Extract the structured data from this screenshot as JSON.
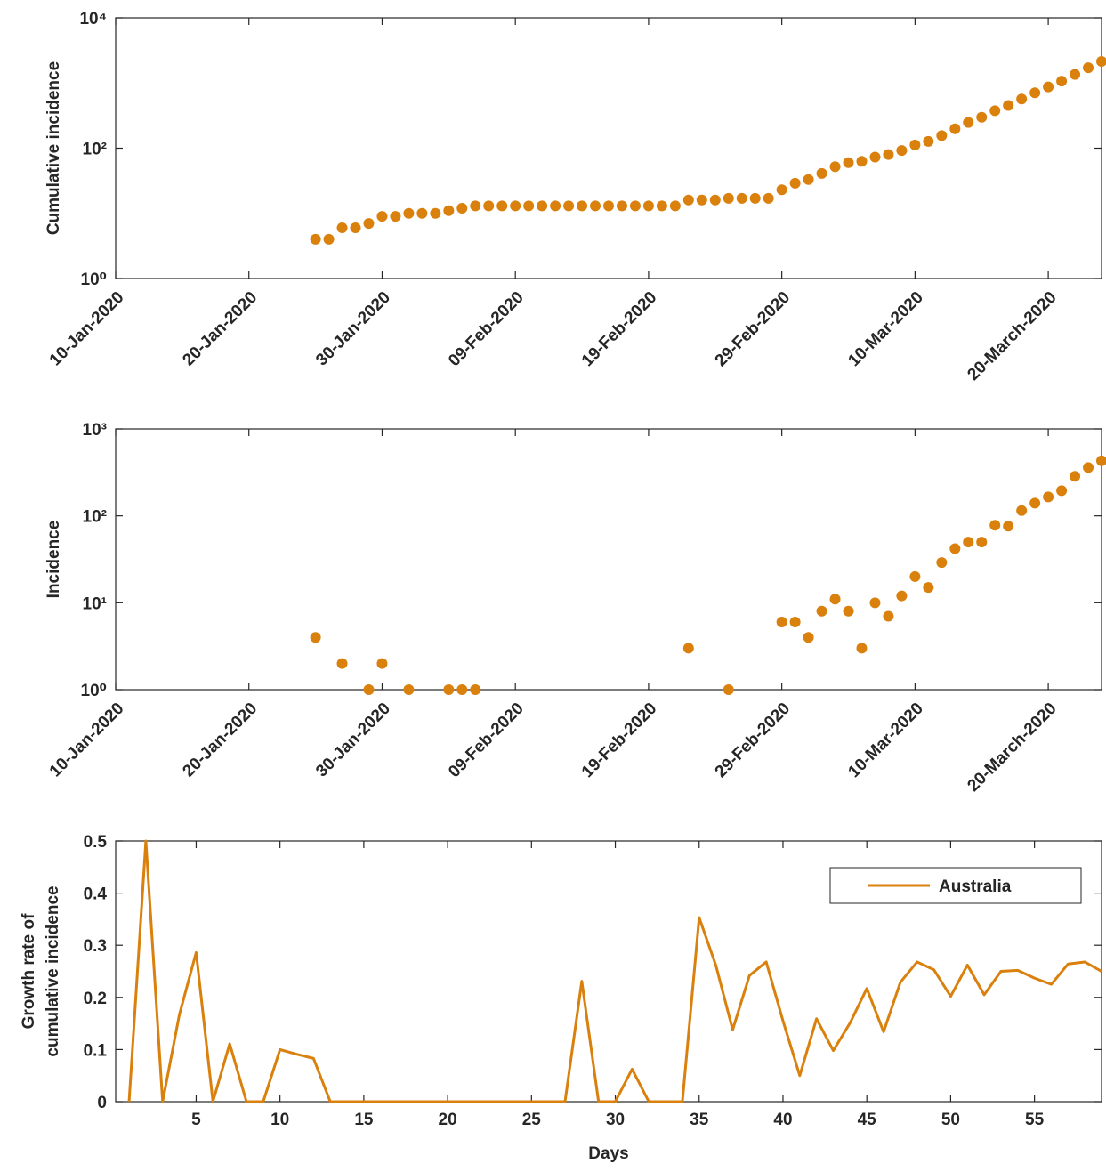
{
  "chart_data": [
    {
      "type": "scatter",
      "ylabel": "Cumulative incidence",
      "color": "#d9800d",
      "yscale": "log",
      "x": [
        "2020-01-25",
        "2020-01-26",
        "2020-01-27",
        "2020-01-28",
        "2020-01-29",
        "2020-01-30",
        "2020-01-31",
        "2020-02-01",
        "2020-02-02",
        "2020-02-03",
        "2020-02-04",
        "2020-02-05",
        "2020-02-06",
        "2020-02-07",
        "2020-02-08",
        "2020-02-09",
        "2020-02-10",
        "2020-02-11",
        "2020-02-12",
        "2020-02-13",
        "2020-02-14",
        "2020-02-15",
        "2020-02-16",
        "2020-02-17",
        "2020-02-18",
        "2020-02-19",
        "2020-02-20",
        "2020-02-21",
        "2020-02-22",
        "2020-02-23",
        "2020-02-24",
        "2020-02-25",
        "2020-02-26",
        "2020-02-27",
        "2020-02-28",
        "2020-02-29",
        "2020-03-01",
        "2020-03-02",
        "2020-03-03",
        "2020-03-04",
        "2020-03-05",
        "2020-03-06",
        "2020-03-07",
        "2020-03-08",
        "2020-03-09",
        "2020-03-10",
        "2020-03-11",
        "2020-03-12",
        "2020-03-13",
        "2020-03-14",
        "2020-03-15",
        "2020-03-16",
        "2020-03-17",
        "2020-03-18",
        "2020-03-19",
        "2020-03-20",
        "2020-03-21",
        "2020-03-22",
        "2020-03-23",
        "2020-03-24"
      ],
      "values": [
        4,
        4,
        6,
        6,
        7,
        9,
        9,
        10,
        10,
        10,
        11,
        12,
        13,
        13,
        13,
        13,
        13,
        13,
        13,
        13,
        13,
        13,
        13,
        13,
        13,
        13,
        13,
        13,
        16,
        16,
        16,
        17,
        17,
        17,
        17,
        23,
        29,
        33,
        41,
        52,
        60,
        63,
        73,
        80,
        92,
        112,
        127,
        156,
        198,
        248,
        298,
        376,
        452,
        567,
        707,
        872,
        1067,
        1352,
        1712,
        2142
      ],
      "xlim": [
        "2020-01-10",
        "2020-03-24"
      ],
      "xticks": [
        {
          "value": "2020-01-10",
          "label": "10-Jan-2020"
        },
        {
          "value": "2020-01-20",
          "label": "20-Jan-2020"
        },
        {
          "value": "2020-01-30",
          "label": "30-Jan-2020"
        },
        {
          "value": "2020-02-09",
          "label": "09-Feb-2020"
        },
        {
          "value": "2020-02-19",
          "label": "19-Feb-2020"
        },
        {
          "value": "2020-02-29",
          "label": "29-Feb-2020"
        },
        {
          "value": "2020-03-10",
          "label": "10-Mar-2020"
        },
        {
          "value": "2020-03-20",
          "label": "20-March-2020"
        }
      ],
      "ylim": [
        1,
        10000
      ],
      "yticks": [
        {
          "value": 1,
          "label": "10⁰"
        },
        {
          "value": 100,
          "label": "10²"
        },
        {
          "value": 10000,
          "label": "10⁴"
        }
      ]
    },
    {
      "type": "scatter",
      "ylabel": "Incidence",
      "color": "#d9800d",
      "yscale": "log",
      "x": [
        "2020-01-25",
        "2020-01-27",
        "2020-01-29",
        "2020-01-30",
        "2020-02-01",
        "2020-02-04",
        "2020-02-05",
        "2020-02-06",
        "2020-02-22",
        "2020-02-25",
        "2020-02-29",
        "2020-03-01",
        "2020-03-02",
        "2020-03-03",
        "2020-03-04",
        "2020-03-05",
        "2020-03-06",
        "2020-03-07",
        "2020-03-08",
        "2020-03-09",
        "2020-03-10",
        "2020-03-11",
        "2020-03-12",
        "2020-03-13",
        "2020-03-14",
        "2020-03-15",
        "2020-03-16",
        "2020-03-17",
        "2020-03-18",
        "2020-03-19",
        "2020-03-20",
        "2020-03-21",
        "2020-03-22",
        "2020-03-23",
        "2020-03-24"
      ],
      "values": [
        4,
        2,
        1,
        2,
        1,
        1,
        1,
        1,
        3,
        1,
        6,
        6,
        4,
        8,
        11,
        8,
        3,
        10,
        7,
        12,
        20,
        15,
        29,
        42,
        50,
        50,
        78,
        76,
        115,
        140,
        165,
        195,
        285,
        360,
        430
      ],
      "xlim": [
        "2020-01-10",
        "2020-03-24"
      ],
      "xticks": [
        {
          "value": "2020-01-10",
          "label": "10-Jan-2020"
        },
        {
          "value": "2020-01-20",
          "label": "20-Jan-2020"
        },
        {
          "value": "2020-01-30",
          "label": "30-Jan-2020"
        },
        {
          "value": "2020-02-09",
          "label": "09-Feb-2020"
        },
        {
          "value": "2020-02-19",
          "label": "19-Feb-2020"
        },
        {
          "value": "2020-02-29",
          "label": "29-Feb-2020"
        },
        {
          "value": "2020-03-10",
          "label": "10-Mar-2020"
        },
        {
          "value": "2020-03-20",
          "label": "20-March-2020"
        }
      ],
      "ylim": [
        1,
        1000
      ],
      "yticks": [
        {
          "value": 1,
          "label": "10⁰"
        },
        {
          "value": 10,
          "label": "10¹"
        },
        {
          "value": 100,
          "label": "10²"
        },
        {
          "value": 1000,
          "label": "10³"
        }
      ]
    },
    {
      "type": "line",
      "ylabel": [
        "Growth rate of",
        "cumulative incidence"
      ],
      "xlabel": "Days",
      "legend": "upper right",
      "x": [
        1,
        2,
        3,
        4,
        5,
        6,
        7,
        8,
        9,
        10,
        11,
        12,
        13,
        14,
        15,
        16,
        17,
        18,
        19,
        20,
        21,
        22,
        23,
        24,
        25,
        26,
        27,
        28,
        29,
        30,
        31,
        32,
        33,
        34,
        35,
        36,
        37,
        38,
        39,
        40,
        41,
        42,
        43,
        44,
        45,
        46,
        47,
        48,
        49,
        50,
        51,
        52,
        53,
        54,
        55,
        56,
        57,
        58,
        59
      ],
      "series": [
        {
          "name": "Australia",
          "color": "#d9800d",
          "values": [
            0,
            0.5,
            0,
            0.167,
            0.286,
            0,
            0.111,
            0,
            0,
            0.1,
            0.091,
            0.083,
            0,
            0,
            0,
            0,
            0,
            0,
            0,
            0,
            0,
            0,
            0,
            0,
            0,
            0,
            0,
            0.231,
            0,
            0,
            0.0625,
            0,
            0,
            0,
            0.353,
            0.261,
            0.138,
            0.242,
            0.268,
            0.155,
            0.05,
            0.159,
            0.098,
            0.151,
            0.217,
            0.134,
            0.229,
            0.268,
            0.253,
            0.202,
            0.262,
            0.205,
            0.25,
            0.252,
            0.237,
            0.225,
            0.264,
            0.268,
            0.25
          ]
        }
      ],
      "xlim": [
        0.2,
        59
      ],
      "xticks": [
        5,
        10,
        15,
        20,
        25,
        30,
        35,
        40,
        45,
        50,
        55
      ],
      "ylim": [
        0,
        0.5
      ],
      "yticks": [
        0,
        0.1,
        0.2,
        0.3,
        0.4,
        0.5
      ]
    }
  ]
}
